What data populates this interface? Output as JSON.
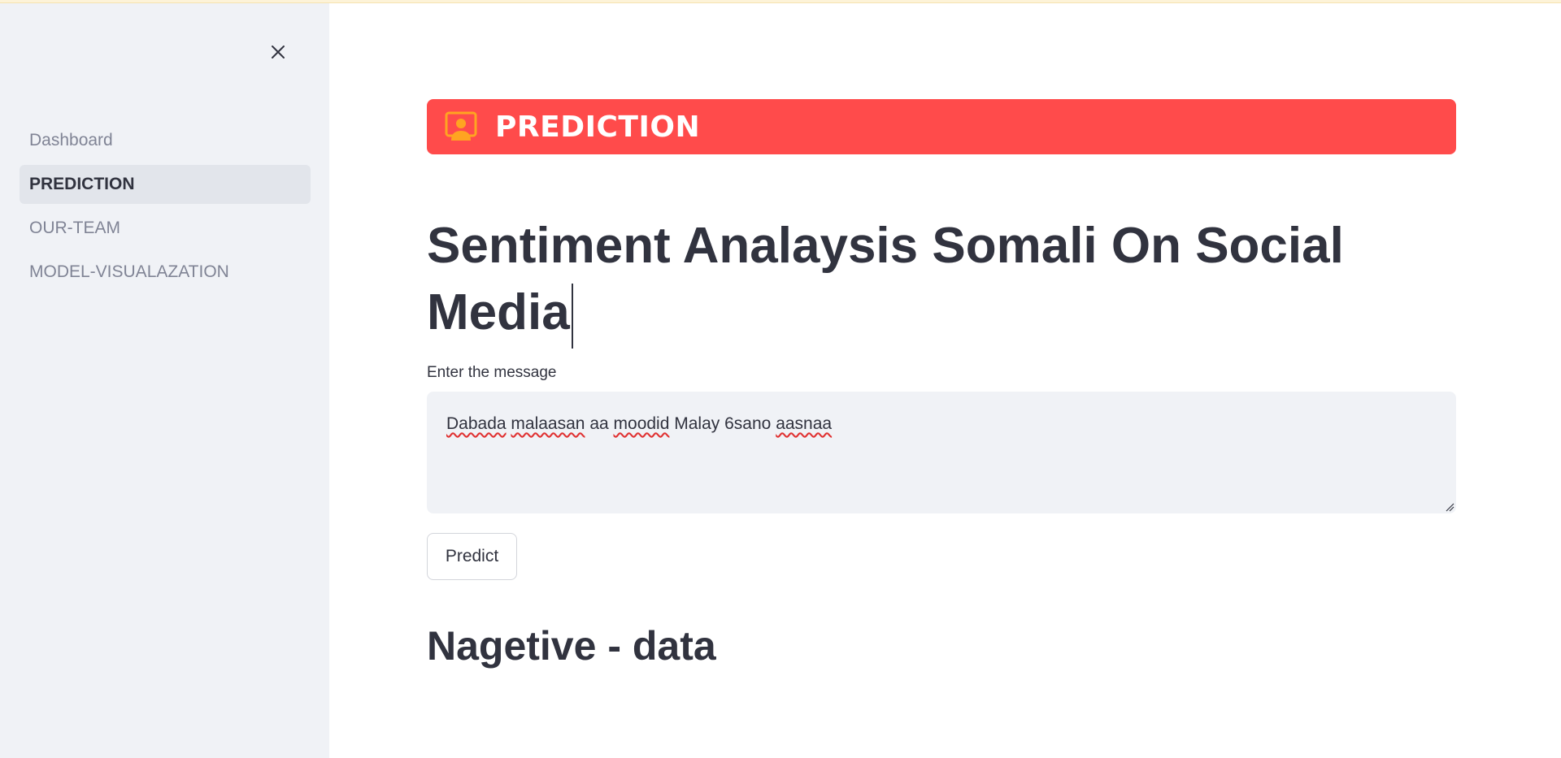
{
  "sidebar": {
    "close_icon": "close-icon",
    "items": [
      {
        "label": "Dashboard",
        "active": false
      },
      {
        "label": "PREDICTION",
        "active": true
      },
      {
        "label": "OUR-TEAM",
        "active": false
      },
      {
        "label": "MODEL-VISUALAZATION",
        "active": false
      }
    ]
  },
  "banner": {
    "icon": "presenter-icon",
    "title": "PREDICTION",
    "color": "#ff4b4b",
    "icon_color": "#ffa421"
  },
  "main": {
    "title_line1": "Sentiment Analaysis Somali On Social",
    "title_line2": "Media",
    "input_label": "Enter the message",
    "message_words": [
      "Dabada",
      "malaasan",
      "aa",
      "moodid",
      "Malay",
      "6sano",
      "aasnaa"
    ],
    "predict_label": "Predict",
    "result": "Nagetive - data"
  }
}
